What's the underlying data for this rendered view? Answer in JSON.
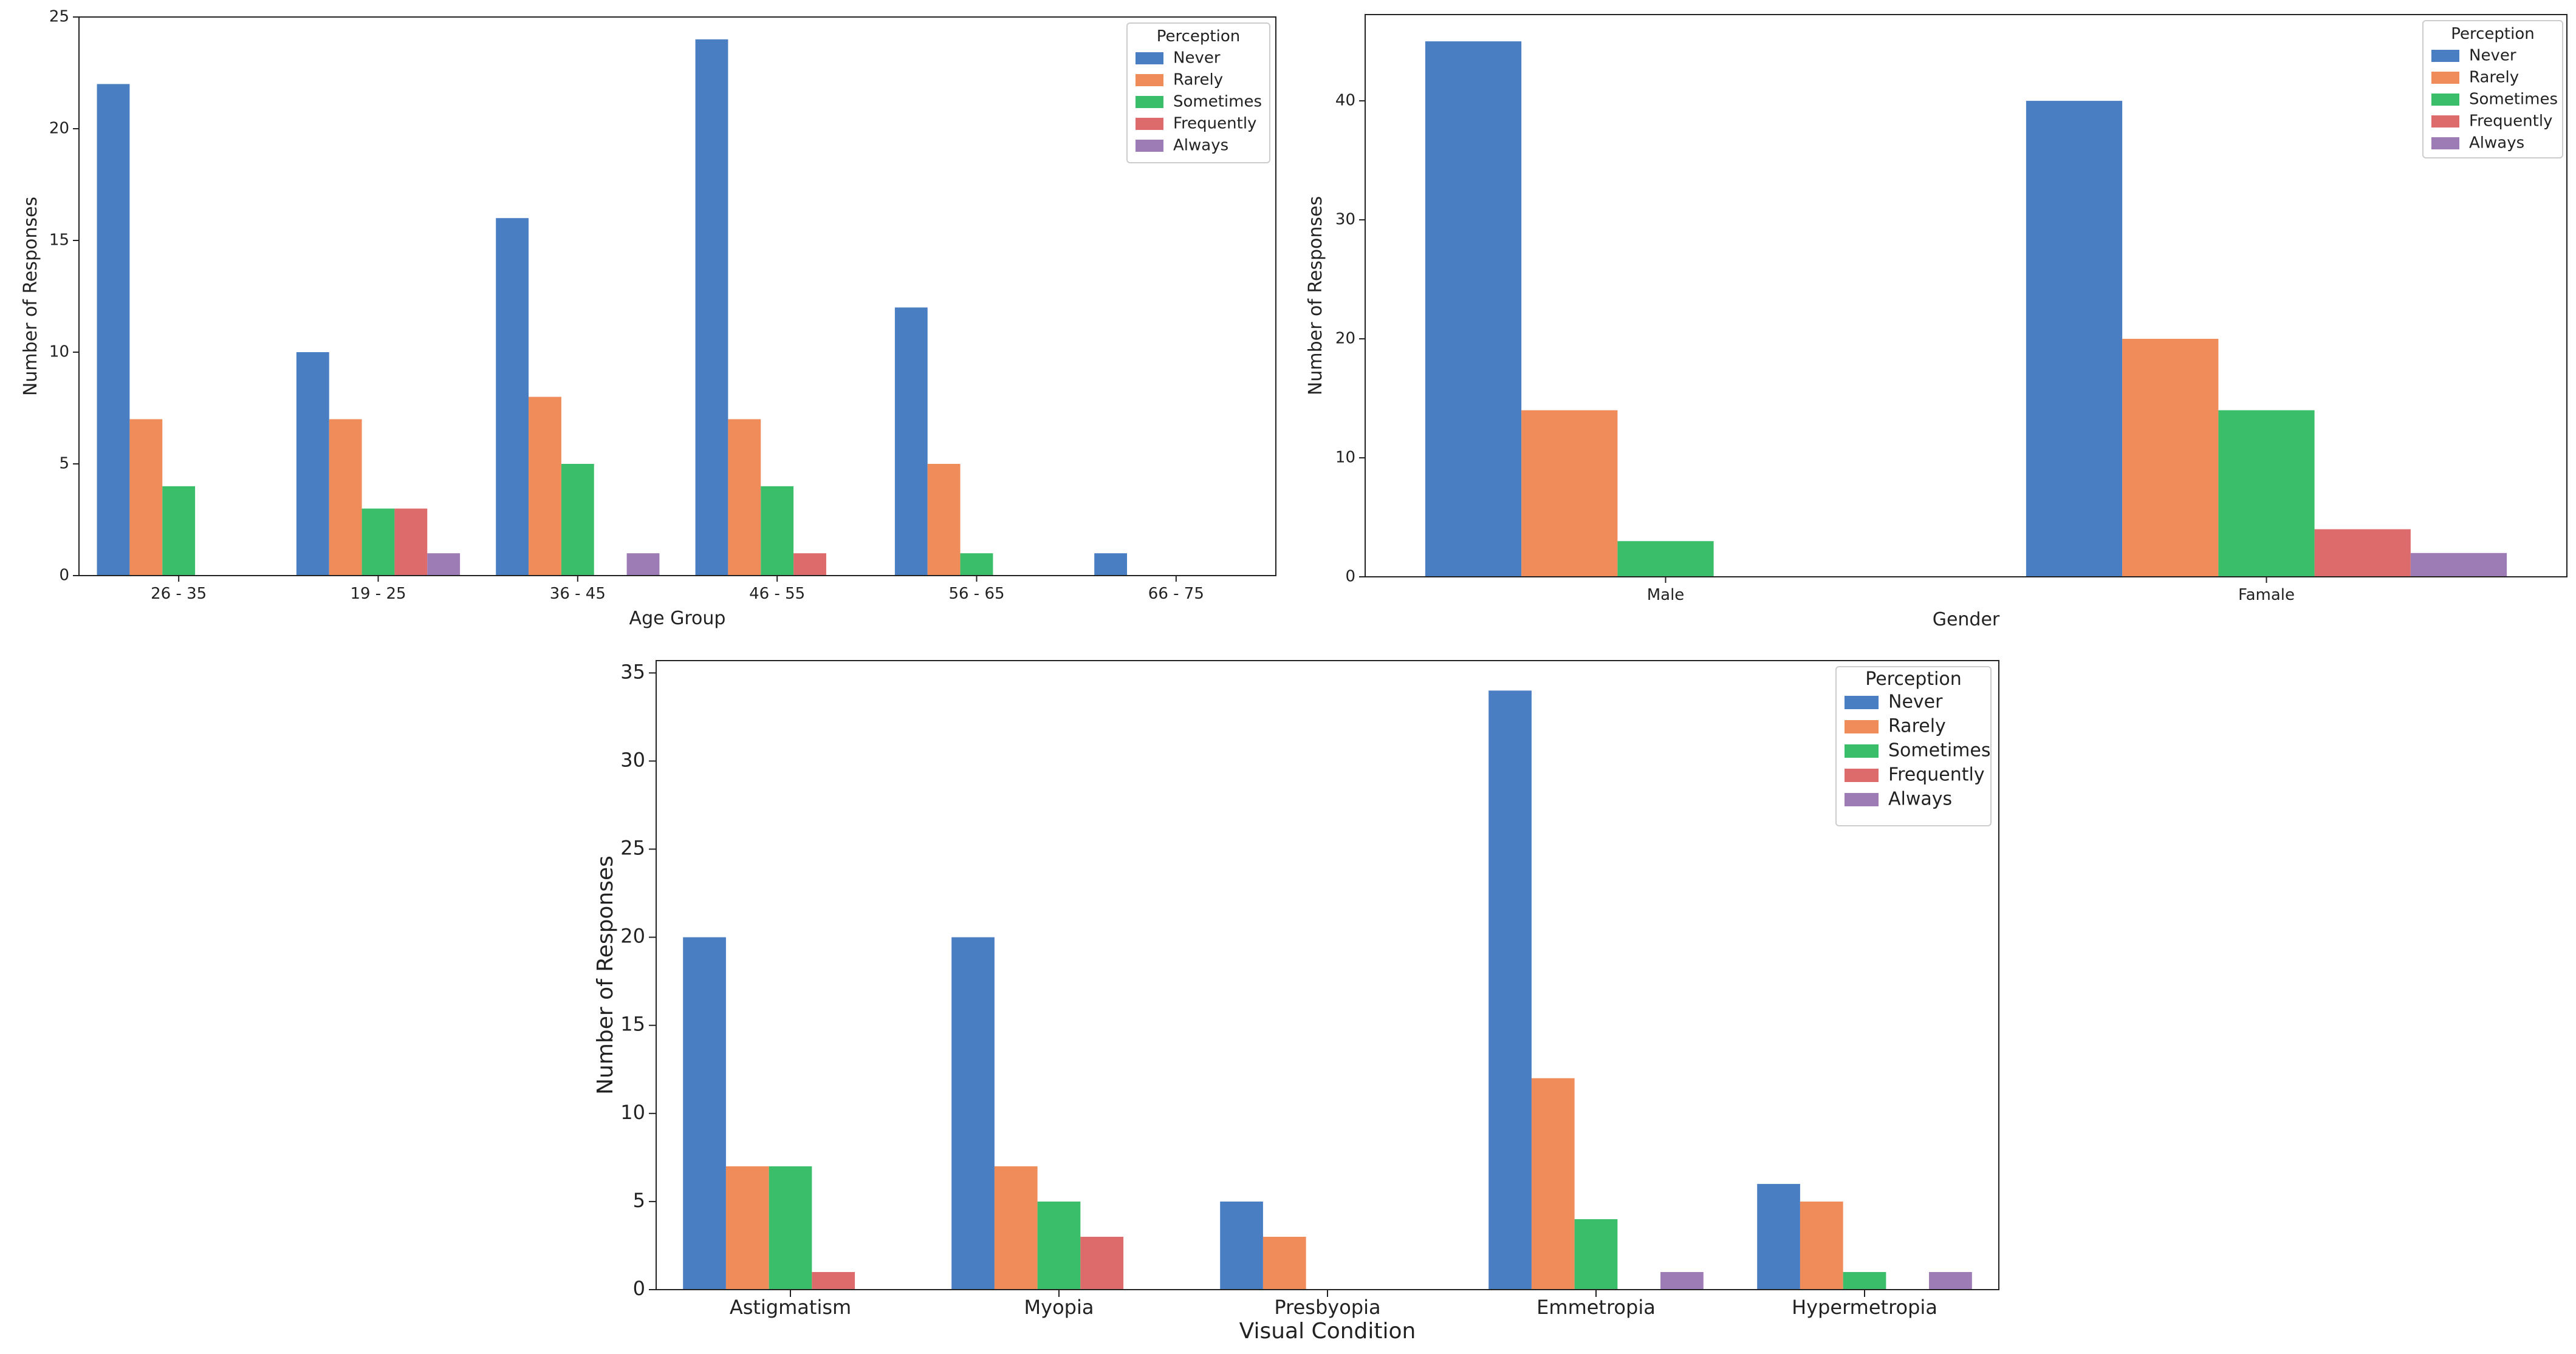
{
  "chart_data": [
    {
      "type": "bar",
      "title": "",
      "xlabel": "Age Group",
      "ylabel": "Number of Responses",
      "ylim": [
        0,
        25
      ],
      "yticks": [
        0,
        5,
        10,
        15,
        20,
        25
      ],
      "grid": false,
      "legend_title": "Perception",
      "legend_position": "top-right",
      "categories": [
        "26 - 35",
        "19 - 25",
        "36 - 45",
        "46 - 55",
        "56 - 65",
        "66 - 75"
      ],
      "series": [
        {
          "name": "Never",
          "color": "#4a7ec3",
          "values": [
            22,
            10,
            16,
            24,
            12,
            1
          ]
        },
        {
          "name": "Rarely",
          "color": "#ef8c5a",
          "values": [
            7,
            7,
            8,
            7,
            5,
            0
          ]
        },
        {
          "name": "Sometimes",
          "color": "#3bbe6a",
          "values": [
            4,
            3,
            5,
            4,
            1,
            0
          ]
        },
        {
          "name": "Frequently",
          "color": "#dd6b6b",
          "values": [
            0,
            3,
            0,
            1,
            0,
            0
          ]
        },
        {
          "name": "Always",
          "color": "#9d7bb5",
          "values": [
            0,
            1,
            1,
            0,
            0,
            0
          ]
        }
      ]
    },
    {
      "type": "bar",
      "title": "",
      "xlabel": "Gender",
      "ylabel": "Number of Responses",
      "ylim": [
        0,
        47.25
      ],
      "yticks": [
        0,
        10,
        20,
        30,
        40
      ],
      "grid": false,
      "legend_title": "Perception",
      "legend_position": "top-right",
      "categories": [
        "Male",
        "Famale"
      ],
      "series": [
        {
          "name": "Never",
          "color": "#4a7ec3",
          "values": [
            45,
            40
          ]
        },
        {
          "name": "Rarely",
          "color": "#ef8c5a",
          "values": [
            14,
            20
          ]
        },
        {
          "name": "Sometimes",
          "color": "#3bbe6a",
          "values": [
            3,
            14
          ]
        },
        {
          "name": "Frequently",
          "color": "#dd6b6b",
          "values": [
            0,
            4
          ]
        },
        {
          "name": "Always",
          "color": "#9d7bb5",
          "values": [
            0,
            2
          ]
        }
      ]
    },
    {
      "type": "bar",
      "title": "",
      "xlabel": "Visual Condition",
      "ylabel": "Number of Responses",
      "ylim": [
        0,
        35.7
      ],
      "yticks": [
        0,
        5,
        10,
        15,
        20,
        25,
        30,
        35
      ],
      "grid": false,
      "legend_title": "Perception",
      "legend_position": "top-right",
      "categories": [
        "Astigmatism",
        "Myopia",
        "Presbyopia",
        "Emmetropia",
        "Hypermetropia"
      ],
      "series": [
        {
          "name": "Never",
          "color": "#4a7ec3",
          "values": [
            20,
            20,
            5,
            34,
            6
          ]
        },
        {
          "name": "Rarely",
          "color": "#ef8c5a",
          "values": [
            7,
            7,
            3,
            12,
            5
          ]
        },
        {
          "name": "Sometimes",
          "color": "#3bbe6a",
          "values": [
            7,
            5,
            0,
            4,
            1
          ]
        },
        {
          "name": "Frequently",
          "color": "#dd6b6b",
          "values": [
            1,
            3,
            0,
            0,
            0
          ]
        },
        {
          "name": "Always",
          "color": "#9d7bb5",
          "values": [
            0,
            0,
            0,
            1,
            1
          ]
        }
      ]
    }
  ]
}
